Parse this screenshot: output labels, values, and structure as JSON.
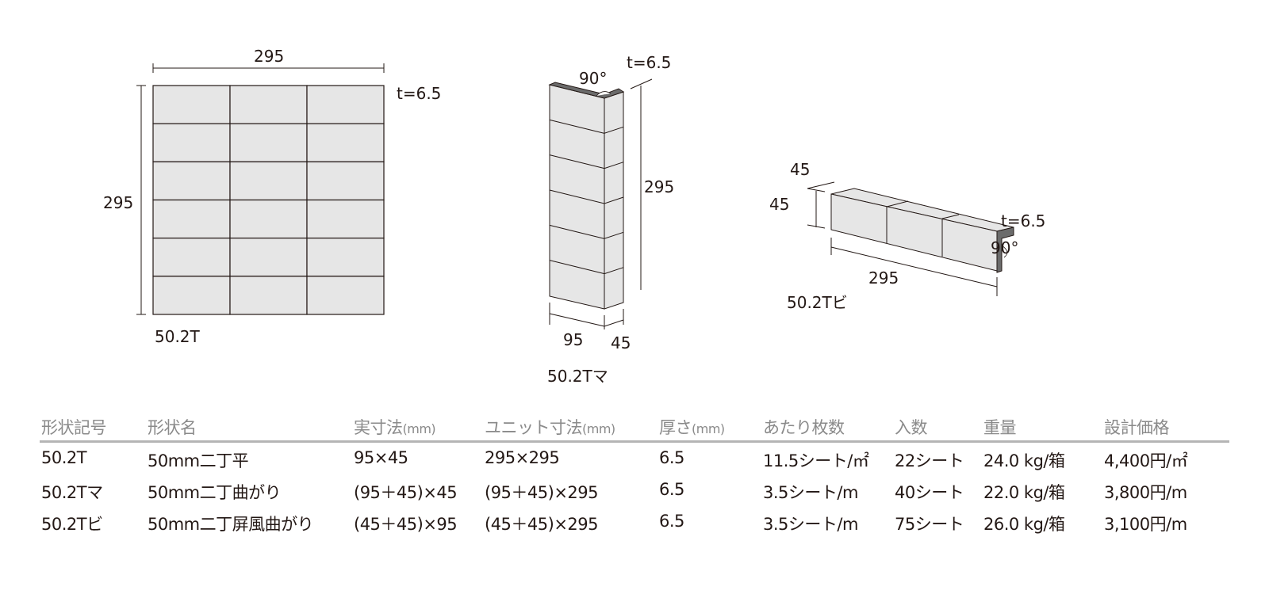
{
  "colors": {
    "tile": "#e6e6e6",
    "line": "#231815",
    "edge": "#6b6b6b",
    "header": "#8a8a8a"
  },
  "diagram_flat": {
    "width": "295",
    "height": "295",
    "thickness": "t=6.5",
    "code": "50.2T"
  },
  "diagram_corner": {
    "angle": "90°",
    "thickness": "t=6.5",
    "height": "295",
    "face_a": "95",
    "face_b": "45",
    "code": "50.2Tマ"
  },
  "diagram_strip": {
    "depth": "45",
    "height": "45",
    "length": "295",
    "thickness": "t=6.5",
    "angle": "90°",
    "code": "50.2Tビ"
  },
  "table": {
    "headers": [
      {
        "label": "形状記号",
        "unit": ""
      },
      {
        "label": "形状名",
        "unit": ""
      },
      {
        "label": "実寸法",
        "unit": "(mm)"
      },
      {
        "label": "ユニット寸法",
        "unit": "(mm)"
      },
      {
        "label": "厚さ",
        "unit": "(mm)"
      },
      {
        "label": "あたり枚数",
        "unit": ""
      },
      {
        "label": "入数",
        "unit": ""
      },
      {
        "label": "重量",
        "unit": ""
      },
      {
        "label": "設計価格",
        "unit": ""
      }
    ],
    "rows": [
      [
        "50.2T",
        "50mm二丁平",
        "95×45",
        "295×295",
        "6.5",
        "11.5シート/㎡",
        "22シート",
        "24.0 kg/箱",
        "4,400円/㎡"
      ],
      [
        "50.2Tマ",
        "50mm二丁曲がり",
        "(95＋45)×45",
        "(95＋45)×295",
        "6.5",
        "3.5シート/m",
        "40シート",
        "22.0 kg/箱",
        "3,800円/m"
      ],
      [
        "50.2Tビ",
        "50mm二丁屏風曲がり",
        "(45＋45)×95",
        "(45＋45)×295",
        "6.5",
        "3.5シート/m",
        "75シート",
        "26.0 kg/箱",
        "3,100円/m"
      ]
    ]
  }
}
